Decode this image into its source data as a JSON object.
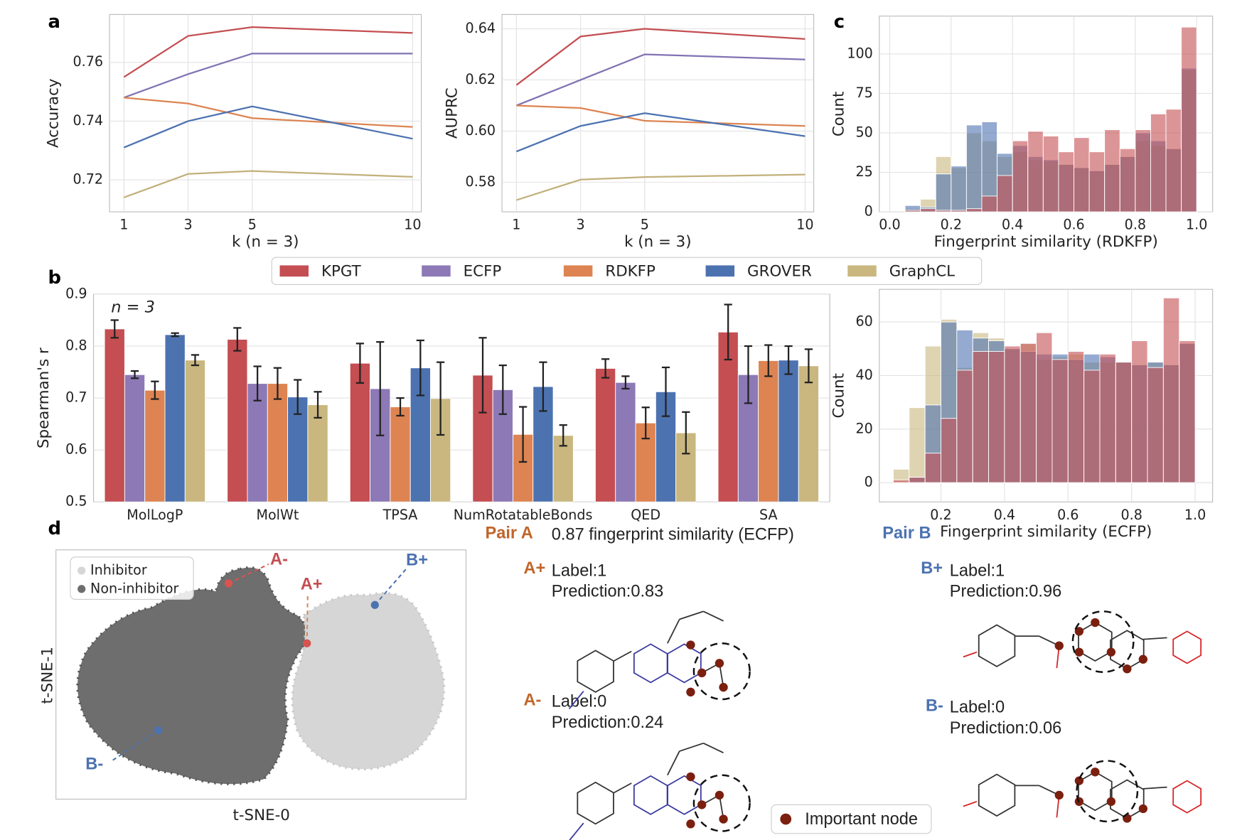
{
  "chart_data": [
    {
      "type": "line",
      "panel_label": "a",
      "ylabel": "Accuracy",
      "xlabel": "k (n = 3)",
      "x": [
        1,
        3,
        5,
        10
      ],
      "xlim": [
        0.55,
        10.27
      ],
      "xticks": [
        1,
        3,
        5,
        10
      ],
      "ylim": [
        0.7091,
        0.7763
      ],
      "yticks": [
        0.72,
        0.74,
        0.76
      ],
      "grid": true,
      "series": [
        {
          "name": "KPGT",
          "color": "#c44e52",
          "values": [
            0.755,
            0.769,
            0.772,
            0.77
          ]
        },
        {
          "name": "ECFP",
          "color": "#8172b3",
          "values": [
            0.748,
            0.756,
            0.763,
            0.763
          ]
        },
        {
          "name": "RDKFP",
          "color": "#dd8452",
          "values": [
            0.748,
            0.746,
            0.741,
            0.738
          ]
        },
        {
          "name": "GROVER",
          "color": "#4c72b0",
          "values": [
            0.731,
            0.74,
            0.745,
            0.734
          ]
        },
        {
          "name": "GraphCL",
          "color": "#c2b07a",
          "values": [
            0.714,
            0.722,
            0.723,
            0.721
          ]
        }
      ]
    },
    {
      "type": "line",
      "ylabel": "AUPRC",
      "xlabel": "k (n = 3)",
      "x": [
        1,
        3,
        5,
        10
      ],
      "xlim": [
        0.55,
        10.27
      ],
      "xticks": [
        1,
        3,
        5,
        10
      ],
      "ylim": [
        0.5684,
        0.6456
      ],
      "yticks": [
        0.58,
        {
          "value": 0.6,
          "label": "0.60"
        },
        0.62,
        0.64
      ],
      "grid": true,
      "series": [
        {
          "name": "KPGT",
          "color": "#c44e52",
          "values": [
            0.618,
            0.637,
            0.64,
            0.636
          ]
        },
        {
          "name": "ECFP",
          "color": "#8172b3",
          "values": [
            0.61,
            0.62,
            0.63,
            0.628
          ]
        },
        {
          "name": "RDKFP",
          "color": "#dd8452",
          "values": [
            0.61,
            0.609,
            0.604,
            0.602
          ]
        },
        {
          "name": "GROVER",
          "color": "#4c72b0",
          "values": [
            0.592,
            0.602,
            0.607,
            0.598
          ]
        },
        {
          "name": "GraphCL",
          "color": "#c2b07a",
          "values": [
            0.573,
            0.581,
            0.582,
            0.583
          ]
        }
      ]
    },
    {
      "type": "histogram",
      "panel_label": "c",
      "ylabel": "Count",
      "xlabel": "Fingerprint similarity (RDKFP)",
      "bins": [
        0.05,
        0.1,
        0.15,
        0.2,
        0.25,
        0.3,
        0.35,
        0.4,
        0.45,
        0.5,
        0.55,
        0.6,
        0.65,
        0.7,
        0.75,
        0.8,
        0.85,
        0.9,
        0.95,
        1.0
      ],
      "xlim": [
        -0.034,
        1.052
      ],
      "xticks": [
        {
          "value": 0,
          "label": "0.0"
        },
        0.2,
        0.4,
        0.6,
        0.8,
        {
          "value": 1,
          "label": "1.0"
        }
      ],
      "ylim": [
        0,
        124
      ],
      "yticks": [
        0,
        25,
        50,
        75,
        100
      ],
      "grid": true,
      "series": [
        {
          "name": "GraphCL",
          "color": "#c9b77f",
          "values": [
            2,
            8,
            35,
            28,
            50,
            45,
            35,
            38,
            33,
            32,
            30,
            28,
            26,
            30,
            35,
            45,
            42,
            40,
            90
          ]
        },
        {
          "name": "GROVER",
          "color": "#4c72b0",
          "values": [
            4,
            3,
            24,
            29,
            55,
            57,
            37,
            42,
            35,
            33,
            30,
            28,
            26,
            30,
            35,
            50,
            45,
            40,
            91
          ]
        },
        {
          "name": "KPGT",
          "color": "#c44e52",
          "values": [
            1,
            2,
            1,
            1,
            2,
            10,
            23,
            45,
            51,
            48,
            38,
            47,
            38,
            52,
            40,
            52,
            62,
            65,
            117
          ]
        }
      ]
    },
    {
      "type": "histogram",
      "ylabel": "Count",
      "xlabel": "Fingerprint similarity (ECFP)",
      "bins": [
        0.05,
        0.1,
        0.15,
        0.2,
        0.25,
        0.3,
        0.35,
        0.4,
        0.45,
        0.5,
        0.55,
        0.6,
        0.65,
        0.7,
        0.75,
        0.8,
        0.85,
        0.9,
        0.95,
        1.0
      ],
      "xlim": [
        0.006,
        1.055
      ],
      "xticks": [
        0.2,
        0.4,
        0.6,
        0.8,
        {
          "value": 1,
          "label": "1.0"
        }
      ],
      "ylim": [
        -7.2,
        72.2
      ],
      "yticks": [
        0,
        20,
        40,
        60
      ],
      "grid": true,
      "series": [
        {
          "name": "GraphCL",
          "color": "#c9b77f",
          "values": [
            5,
            28,
            51,
            61,
            43,
            56,
            54,
            50,
            52,
            46,
            47,
            48,
            45,
            45,
            45,
            44,
            45,
            44,
            52
          ]
        },
        {
          "name": "GROVER",
          "color": "#4c72b0",
          "values": [
            0,
            2,
            29,
            60,
            57,
            54,
            53,
            50,
            49,
            48,
            48,
            46,
            48,
            47,
            45,
            44,
            45,
            44,
            52
          ]
        },
        {
          "name": "KPGT",
          "color": "#c44e52",
          "values": [
            1,
            2,
            11,
            24,
            42,
            49,
            49,
            51,
            52,
            56,
            46,
            49,
            42,
            48,
            45,
            53,
            43,
            69,
            53
          ]
        }
      ]
    },
    {
      "type": "bar",
      "panel_label": "b",
      "ylabel": "Spearman's r",
      "annotation": "n = 3",
      "categories": [
        "MolLogP",
        "MolWt",
        "TPSA",
        "NumRotatableBonds",
        "QED",
        "SA"
      ],
      "ylim": [
        0.5,
        0.9
      ],
      "yticks": [
        0.5,
        0.6,
        0.7,
        0.8,
        0.9
      ],
      "grid": true,
      "legend": "top-center",
      "series": [
        {
          "name": "KPGT",
          "color": "#c44e52",
          "values": [
            0.833,
            0.813,
            0.767,
            0.744,
            0.757,
            0.827
          ],
          "errors": [
            0.017,
            0.022,
            0.038,
            0.072,
            0.018,
            0.053
          ]
        },
        {
          "name": "ECFP",
          "color": "#8c79b5",
          "values": [
            0.745,
            0.728,
            0.718,
            0.716,
            0.73,
            0.745
          ],
          "errors": [
            0.007,
            0.033,
            0.09,
            0.047,
            0.012,
            0.055
          ]
        },
        {
          "name": "RDKFP",
          "color": "#dd8452",
          "values": [
            0.715,
            0.728,
            0.683,
            0.63,
            0.652,
            0.772
          ],
          "errors": [
            0.017,
            0.03,
            0.017,
            0.053,
            0.03,
            0.03
          ]
        },
        {
          "name": "GROVER",
          "color": "#4c72b0",
          "values": [
            0.822,
            0.702,
            0.758,
            0.722,
            0.712,
            0.773
          ],
          "errors": [
            0.003,
            0.033,
            0.053,
            0.047,
            0.047,
            0.027
          ]
        },
        {
          "name": "GraphCL",
          "color": "#c9b77f",
          "values": [
            0.773,
            0.687,
            0.699,
            0.628,
            0.633,
            0.762
          ],
          "errors": [
            0.01,
            0.025,
            0.07,
            0.02,
            0.04,
            0.032
          ]
        }
      ]
    }
  ],
  "panel_d": {
    "panel_label": "d",
    "legend": [
      "Inhibitor",
      "Non-inhibitor"
    ],
    "xlabel": "t-SNE-0",
    "ylabel": "t-SNE-1",
    "markers": [
      "A-",
      "A+",
      "B+",
      "B-"
    ],
    "pair_a": {
      "title": "Pair A",
      "similarity": "0.87 fingerprint similarity (ECFP)",
      "plus": {
        "tag": "A+",
        "label": "Label:1",
        "prediction": "Prediction:0.83"
      },
      "minus": {
        "tag": "A-",
        "label": "Label:0",
        "prediction": "Prediction:0.24"
      }
    },
    "pair_b": {
      "title": "Pair B",
      "plus": {
        "tag": "B+",
        "label": "Label:1",
        "prediction": "Prediction:0.96"
      },
      "minus": {
        "tag": "B-",
        "label": "Label:0",
        "prediction": "Prediction:0.06"
      }
    },
    "important_node": "Important node"
  }
}
